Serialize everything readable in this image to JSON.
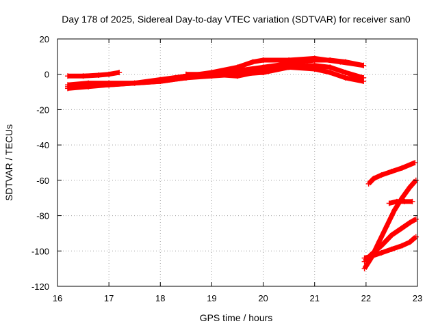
{
  "chart_data": {
    "type": "scatter",
    "title": "Day 178 of 2025, Sidereal Day-to-day VTEC variation (SDTVAR) for receiver san0",
    "xlabel": "GPS time / hours",
    "ylabel": "SDTVAR / TECUs",
    "xlim": [
      16,
      23
    ],
    "ylim": [
      -120,
      20
    ],
    "xticks": [
      "16",
      "17",
      "18",
      "19",
      "20",
      "21",
      "22",
      "23"
    ],
    "yticks": [
      "20",
      "0",
      "-20",
      "-40",
      "-60",
      "-80",
      "-100",
      "-120"
    ],
    "grid": true,
    "marker": "plus",
    "color": "#ff0000",
    "series": [
      {
        "x": [
          16.2,
          16.5,
          16.8,
          17.0,
          17.2
        ],
        "y": [
          -1,
          -1,
          -0.5,
          0,
          1
        ]
      },
      {
        "x": [
          16.2,
          16.6,
          17.0,
          17.5,
          18.0,
          18.5,
          19.0,
          19.5,
          20.0,
          20.5,
          21.0,
          21.3,
          21.6,
          21.95
        ],
        "y": [
          -6,
          -5,
          -5,
          -5,
          -4,
          -2,
          0,
          2,
          4,
          6,
          8,
          8,
          7,
          5
        ]
      },
      {
        "x": [
          16.2,
          16.6,
          17.0,
          17.5,
          18.0,
          18.5,
          19.0,
          19.5,
          19.8,
          20.0,
          20.5,
          21.0,
          21.5,
          21.95
        ],
        "y": [
          -8,
          -7,
          -6,
          -5,
          -3,
          -1,
          1,
          4,
          7,
          8,
          8,
          9,
          7,
          5
        ]
      },
      {
        "x": [
          16.2,
          17.0,
          18.0,
          18.5,
          19.0,
          19.5,
          20.0,
          20.5,
          21.0,
          21.3,
          21.6,
          21.95
        ],
        "y": [
          -7,
          -6,
          -4,
          -2,
          -1,
          0,
          1,
          4,
          5,
          4,
          1,
          -2
        ]
      },
      {
        "x": [
          18.5,
          19.0,
          19.5,
          20.0,
          20.5,
          21.0,
          21.3,
          21.6,
          21.95
        ],
        "y": [
          0,
          0,
          -1,
          2,
          4,
          3,
          1,
          -2,
          -4
        ]
      },
      {
        "x": [
          22.05,
          22.15,
          22.3,
          22.5,
          22.7,
          22.95
        ],
        "y": [
          -62,
          -59,
          -57,
          -55,
          -53,
          -50
        ]
      },
      {
        "x": [
          22.45,
          22.6,
          22.75,
          22.9
        ],
        "y": [
          -73,
          -72,
          -72,
          -72
        ]
      },
      {
        "x": [
          21.97,
          22.1,
          22.25,
          22.4,
          22.55,
          22.7,
          22.85,
          22.97
        ],
        "y": [
          -110,
          -104,
          -95,
          -86,
          -77,
          -70,
          -64,
          -60
        ]
      },
      {
        "x": [
          21.97,
          22.1,
          22.3,
          22.5,
          22.7,
          22.85,
          22.97
        ],
        "y": [
          -106,
          -102,
          -97,
          -91,
          -87,
          -84,
          -82
        ]
      },
      {
        "x": [
          21.97,
          22.1,
          22.3,
          22.5,
          22.7,
          22.85,
          22.97
        ],
        "y": [
          -104,
          -103,
          -101,
          -99,
          -97,
          -95,
          -92
        ]
      }
    ]
  }
}
